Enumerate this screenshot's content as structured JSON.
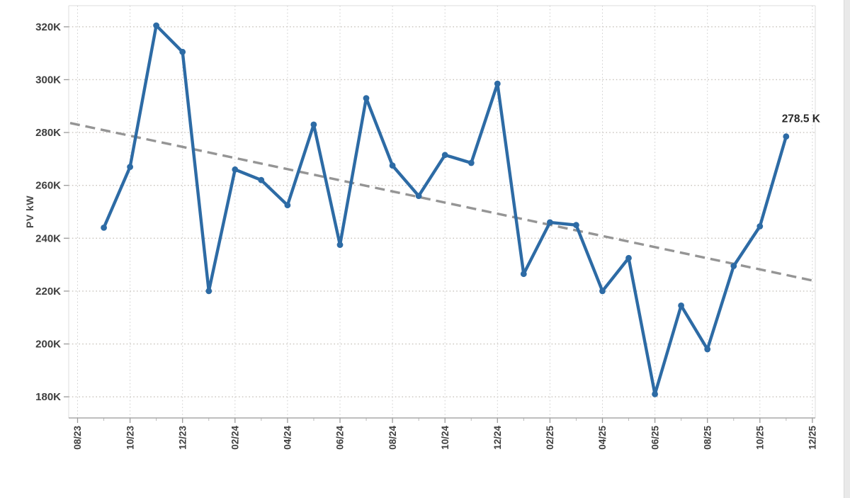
{
  "chart_data": {
    "type": "line",
    "title": "",
    "ylabel": "PV kW",
    "xlabel": "",
    "legend_position": "none",
    "grid": true,
    "x": [
      "09/23",
      "10/23",
      "11/23",
      "12/23",
      "01/24",
      "02/24",
      "03/24",
      "04/24",
      "05/24",
      "06/24",
      "07/24",
      "08/24",
      "09/24",
      "10/24",
      "11/24",
      "12/24",
      "01/25",
      "02/25",
      "03/25",
      "04/25",
      "05/25",
      "06/25",
      "07/25",
      "08/25",
      "09/25",
      "10/25",
      "11/25"
    ],
    "series": [
      {
        "name": "PV kW",
        "kind": "line-with-markers",
        "color": "#2d6ba5",
        "values": [
          244,
          267,
          320.5,
          310.5,
          220,
          266,
          262,
          252.5,
          283,
          237.5,
          293,
          267.5,
          256,
          271.5,
          268.5,
          298.5,
          226.5,
          246,
          245,
          220,
          232.5,
          181,
          214.5,
          198,
          229.5,
          244.5,
          278.5
        ]
      },
      {
        "name": "Trend",
        "kind": "trendline-dashed",
        "color": "#8a8a8a",
        "start": {
          "x": "08/23",
          "value": 283
        },
        "end": {
          "x": "12/25",
          "value": 224
        }
      }
    ],
    "x_axis": {
      "start": "08/23",
      "end": "12/25",
      "major_tick_labels": [
        "08/23",
        "10/23",
        "12/23",
        "02/24",
        "04/24",
        "06/24",
        "08/24",
        "10/24",
        "12/24",
        "02/25",
        "04/25",
        "06/25",
        "08/25",
        "10/25",
        "12/25"
      ],
      "minor_ticks_monthly": true
    },
    "y_axis": {
      "min": 172,
      "max": 328,
      "ticks": [
        180,
        200,
        220,
        240,
        260,
        280,
        300,
        320
      ],
      "tick_suffix": "K"
    },
    "annotation": {
      "text": "278.5 K",
      "x": "11/25",
      "value": 278.5
    }
  },
  "colors": {
    "series_blue": "#2d6ba5",
    "trend_gray": "#8a8a8a",
    "grid_horizontal": "#c9c4bd",
    "grid_vertical": "#cfcfcf",
    "axis_line": "#a8a8a8",
    "tick_mark": "#9a9a9a",
    "tick_label": "#3e3e3e",
    "annotation_text": "#2a2a2a",
    "plot_border": "#dedede",
    "background": "#ffffff"
  }
}
